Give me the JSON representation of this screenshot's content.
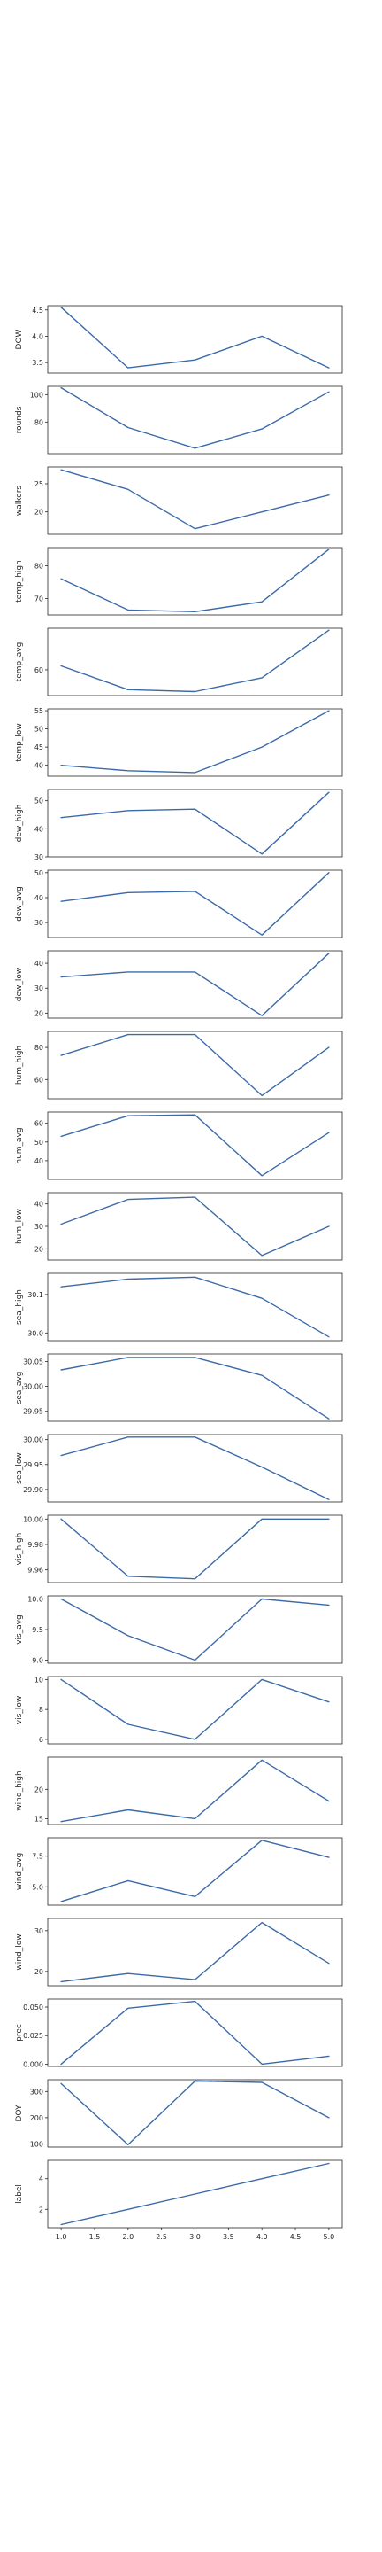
{
  "style": {
    "line_color": "#3c6aa8",
    "frame_color": "#262626",
    "text_color": "#262626"
  },
  "chart_data": [
    {
      "type": "line",
      "ylabel": "DOW",
      "x": [
        1,
        2,
        3,
        4,
        5
      ],
      "values": [
        4.55,
        3.4,
        3.55,
        4.0,
        3.4
      ],
      "ylim": [
        3.3,
        4.58
      ],
      "yticks": [
        3.5,
        4.0,
        4.5
      ],
      "ytick_labels": [
        "3.5",
        "4.0",
        "4.5"
      ],
      "xticks_visible": false
    },
    {
      "type": "line",
      "ylabel": "rounds",
      "x": [
        1,
        2,
        3,
        4,
        5
      ],
      "values": [
        105,
        76,
        61,
        75,
        102
      ],
      "ylim": [
        57,
        106
      ],
      "yticks": [
        80,
        100
      ],
      "ytick_labels": [
        "80",
        "100"
      ],
      "xticks_visible": false
    },
    {
      "type": "line",
      "ylabel": "walkers",
      "x": [
        1,
        2,
        3,
        4,
        5
      ],
      "values": [
        27.5,
        24,
        17,
        20,
        23
      ],
      "ylim": [
        16,
        28
      ],
      "yticks": [
        20,
        25
      ],
      "ytick_labels": [
        "20",
        "25"
      ],
      "xticks_visible": false
    },
    {
      "type": "line",
      "ylabel": "temp_high",
      "x": [
        1,
        2,
        3,
        4,
        5
      ],
      "values": [
        76,
        66.5,
        66,
        69,
        85
      ],
      "ylim": [
        65,
        85.5
      ],
      "yticks": [
        70,
        80
      ],
      "ytick_labels": [
        "70",
        "80"
      ],
      "xticks_visible": false
    },
    {
      "type": "line",
      "ylabel": "temp_avg",
      "x": [
        1,
        2,
        3,
        4,
        5
      ],
      "values": [
        61,
        55,
        54.5,
        58,
        70
      ],
      "ylim": [
        53.5,
        70.5
      ],
      "yticks": [
        60
      ],
      "ytick_labels": [
        "60"
      ],
      "xticks_visible": false
    },
    {
      "type": "line",
      "ylabel": "temp_low",
      "x": [
        1,
        2,
        3,
        4,
        5
      ],
      "values": [
        40,
        38.5,
        38,
        45,
        55
      ],
      "ylim": [
        37,
        55.5
      ],
      "yticks": [
        40,
        45,
        50,
        55
      ],
      "ytick_labels": [
        "40",
        "45",
        "50",
        "55"
      ],
      "xticks_visible": false
    },
    {
      "type": "line",
      "ylabel": "dew_high",
      "x": [
        1,
        2,
        3,
        4,
        5
      ],
      "values": [
        44,
        46.5,
        47,
        31,
        53
      ],
      "ylim": [
        30,
        54
      ],
      "yticks": [
        30,
        40,
        50
      ],
      "ytick_labels": [
        "30",
        "40",
        "50"
      ],
      "xticks_visible": false
    },
    {
      "type": "line",
      "ylabel": "dew_avg",
      "x": [
        1,
        2,
        3,
        4,
        5
      ],
      "values": [
        38.5,
        42,
        42.5,
        25,
        50
      ],
      "ylim": [
        24,
        51
      ],
      "yticks": [
        30,
        40,
        50
      ],
      "ytick_labels": [
        "30",
        "40",
        "50"
      ],
      "xticks_visible": false
    },
    {
      "type": "line",
      "ylabel": "dew_low",
      "x": [
        1,
        2,
        3,
        4,
        5
      ],
      "values": [
        34.5,
        36.5,
        36.5,
        19,
        44
      ],
      "ylim": [
        18,
        45
      ],
      "yticks": [
        20,
        30,
        40
      ],
      "ytick_labels": [
        "20",
        "30",
        "40"
      ],
      "xticks_visible": false
    },
    {
      "type": "line",
      "ylabel": "hum_high",
      "x": [
        1,
        2,
        3,
        4,
        5
      ],
      "values": [
        75,
        88,
        88,
        50,
        80
      ],
      "ylim": [
        48,
        90
      ],
      "yticks": [
        60,
        80
      ],
      "ytick_labels": [
        "60",
        "80"
      ],
      "xticks_visible": false
    },
    {
      "type": "line",
      "ylabel": "hum_avg",
      "x": [
        1,
        2,
        3,
        4,
        5
      ],
      "values": [
        53,
        64,
        64.5,
        32,
        55
      ],
      "ylim": [
        30,
        66
      ],
      "yticks": [
        40,
        50,
        60
      ],
      "ytick_labels": [
        "40",
        "50",
        "60"
      ],
      "xticks_visible": false
    },
    {
      "type": "line",
      "ylabel": "hum_low",
      "x": [
        1,
        2,
        3,
        4,
        5
      ],
      "values": [
        31,
        42,
        43,
        17,
        30
      ],
      "ylim": [
        15,
        45
      ],
      "yticks": [
        20,
        30,
        40
      ],
      "ytick_labels": [
        "20",
        "30",
        "40"
      ],
      "xticks_visible": false
    },
    {
      "type": "line",
      "ylabel": "sea_high",
      "x": [
        1,
        2,
        3,
        4,
        5
      ],
      "values": [
        30.12,
        30.14,
        30.145,
        30.09,
        29.99
      ],
      "ylim": [
        29.98,
        30.155
      ],
      "yticks": [
        30.0,
        30.1
      ],
      "ytick_labels": [
        "30.0",
        "30.1"
      ],
      "xticks_visible": false
    },
    {
      "type": "line",
      "ylabel": "sea_avg",
      "x": [
        1,
        2,
        3,
        4,
        5
      ],
      "values": [
        30.033,
        30.058,
        30.058,
        30.022,
        29.935
      ],
      "ylim": [
        29.93,
        30.065
      ],
      "yticks": [
        29.95,
        30.0,
        30.05
      ],
      "ytick_labels": [
        "29.95",
        "30.00",
        "30.05"
      ],
      "xticks_visible": false
    },
    {
      "type": "line",
      "ylabel": "sea_low",
      "x": [
        1,
        2,
        3,
        4,
        5
      ],
      "values": [
        29.968,
        30.005,
        30.005,
        29.945,
        29.88
      ],
      "ylim": [
        29.875,
        30.01
      ],
      "yticks": [
        29.9,
        29.95,
        30.0
      ],
      "ytick_labels": [
        "29.90",
        "29.95",
        "30.00"
      ],
      "xticks_visible": false
    },
    {
      "type": "line",
      "ylabel": "vis_high",
      "x": [
        1,
        2,
        3,
        4,
        5
      ],
      "values": [
        10.0,
        9.955,
        9.953,
        10.0,
        10.0
      ],
      "ylim": [
        9.95,
        10.003
      ],
      "yticks": [
        9.96,
        9.98,
        10.0
      ],
      "ytick_labels": [
        "9.96",
        "9.98",
        "10.00"
      ],
      "xticks_visible": false
    },
    {
      "type": "line",
      "ylabel": "vis_avg",
      "x": [
        1,
        2,
        3,
        4,
        5
      ],
      "values": [
        10.0,
        9.4,
        9.0,
        10.0,
        9.9
      ],
      "ylim": [
        8.95,
        10.05
      ],
      "yticks": [
        9.0,
        9.5,
        10.0
      ],
      "ytick_labels": [
        "9.0",
        "9.5",
        "10.0"
      ],
      "xticks_visible": false
    },
    {
      "type": "line",
      "ylabel": "vis_low",
      "x": [
        1,
        2,
        3,
        4,
        5
      ],
      "values": [
        10,
        7,
        6,
        10,
        8.5
      ],
      "ylim": [
        5.7,
        10.2
      ],
      "yticks": [
        6,
        8,
        10
      ],
      "ytick_labels": [
        "6",
        "8",
        "10"
      ],
      "xticks_visible": false
    },
    {
      "type": "line",
      "ylabel": "wind_high",
      "x": [
        1,
        2,
        3,
        4,
        5
      ],
      "values": [
        14.5,
        16.5,
        15,
        25,
        18
      ],
      "ylim": [
        14,
        25.5
      ],
      "yticks": [
        15,
        20
      ],
      "ytick_labels": [
        "15",
        "20"
      ],
      "xticks_visible": false
    },
    {
      "type": "line",
      "ylabel": "wind_avg",
      "x": [
        1,
        2,
        3,
        4,
        5
      ],
      "values": [
        3.8,
        5.5,
        4.2,
        8.8,
        7.4
      ],
      "ylim": [
        3.5,
        9.0
      ],
      "yticks": [
        5.0,
        7.5
      ],
      "ytick_labels": [
        "5.0",
        "7.5"
      ],
      "xticks_visible": false
    },
    {
      "type": "line",
      "ylabel": "wind_low",
      "x": [
        1,
        2,
        3,
        4,
        5
      ],
      "values": [
        17.5,
        19.5,
        18,
        32,
        22
      ],
      "ylim": [
        16.5,
        33
      ],
      "yticks": [
        20,
        30
      ],
      "ytick_labels": [
        "20",
        "30"
      ],
      "xticks_visible": false
    },
    {
      "type": "line",
      "ylabel": "prec",
      "x": [
        1,
        2,
        3,
        4,
        5
      ],
      "values": [
        0.0,
        0.049,
        0.055,
        0.0,
        0.007
      ],
      "ylim": [
        -0.002,
        0.057
      ],
      "yticks": [
        0.0,
        0.025,
        0.05
      ],
      "ytick_labels": [
        "0.000",
        "0.025",
        "0.050"
      ],
      "xticks_visible": false
    },
    {
      "type": "line",
      "ylabel": "DOY",
      "x": [
        1,
        2,
        3,
        4,
        5
      ],
      "values": [
        330,
        97,
        340,
        335,
        200
      ],
      "ylim": [
        88,
        345
      ],
      "yticks": [
        100,
        200,
        300
      ],
      "ytick_labels": [
        "100",
        "200",
        "300"
      ],
      "xticks_visible": false
    },
    {
      "type": "line",
      "ylabel": "label",
      "x": [
        1,
        2,
        3,
        4,
        5
      ],
      "values": [
        1,
        2,
        3,
        4,
        5
      ],
      "ylim": [
        0.8,
        5.2
      ],
      "yticks": [
        2,
        4
      ],
      "ytick_labels": [
        "2",
        "4"
      ],
      "xticks_visible": true,
      "xticks": [
        1.0,
        1.5,
        2.0,
        2.5,
        3.0,
        3.5,
        4.0,
        4.5,
        5.0
      ],
      "xtick_labels": [
        "1.0",
        "1.5",
        "2.0",
        "2.5",
        "3.0",
        "3.5",
        "4.0",
        "4.5",
        "5.0"
      ]
    }
  ]
}
